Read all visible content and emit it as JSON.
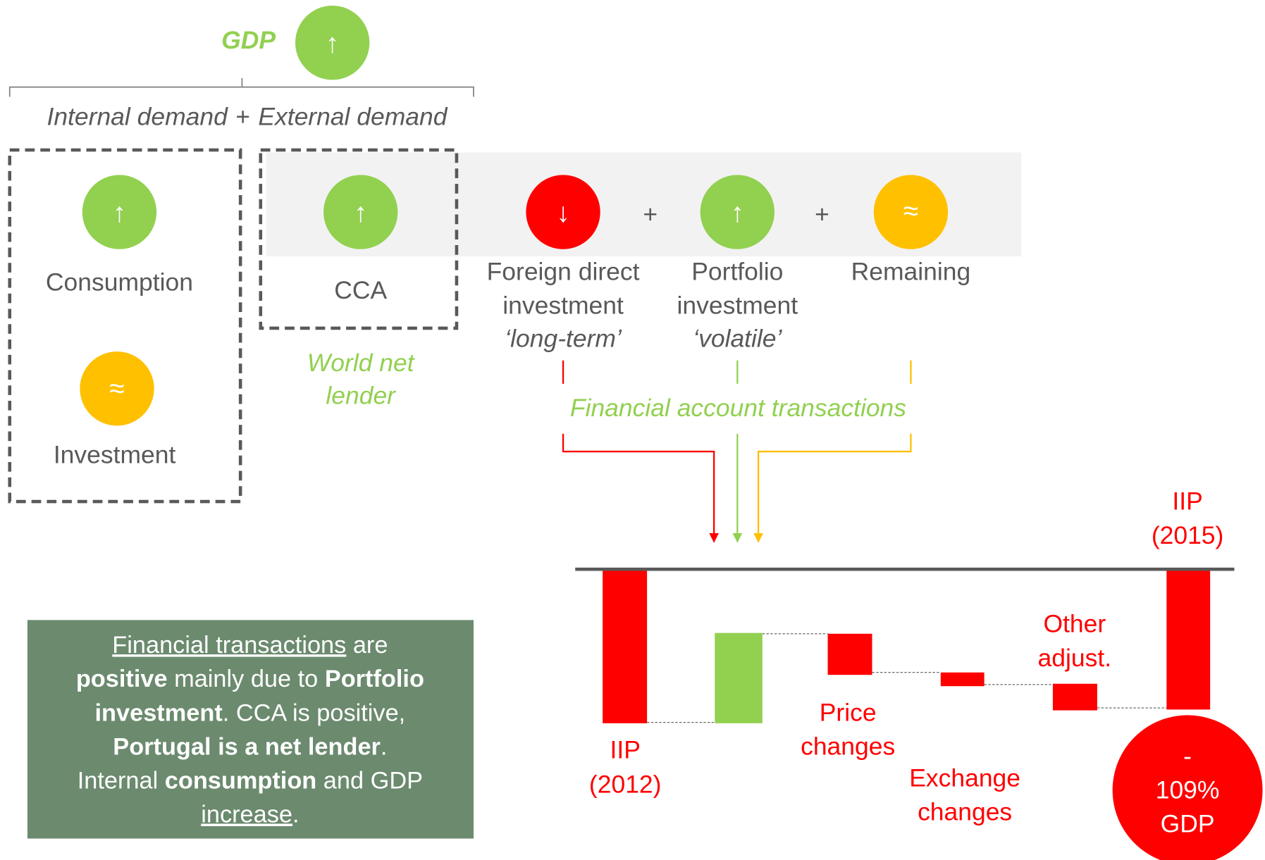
{
  "gdp": {
    "label": "GDP",
    "symbol": "↑"
  },
  "demand": {
    "internal": "Internal demand",
    "plus": "+",
    "external": "External demand"
  },
  "internal": [
    {
      "symbol": "↑",
      "label": "Consumption"
    },
    {
      "symbol": "≈",
      "label": "Investment"
    }
  ],
  "cca": {
    "symbol": "↑",
    "label": "CCA",
    "note": [
      "World net",
      "lender"
    ]
  },
  "financial": {
    "items": [
      {
        "symbol": "↓",
        "label": [
          "Foreign direct",
          "investment",
          "‘long-term’"
        ]
      },
      {
        "symbol": "↑",
        "label": [
          "Portfolio",
          "investment",
          "‘volatile’"
        ]
      },
      {
        "symbol": "≈",
        "label": [
          "Remaining"
        ]
      }
    ],
    "plus": "+",
    "caption": "Financial account transactions"
  },
  "waterfall": {
    "start": [
      "IIP",
      "(2012)"
    ],
    "price": [
      "Price",
      "changes"
    ],
    "exchange": [
      "Exchange",
      "changes"
    ],
    "other": [
      "Other",
      "adjust."
    ],
    "end": [
      "IIP",
      "(2015)"
    ],
    "result": [
      "-",
      "109%",
      "GDP"
    ]
  },
  "summary": [
    [
      {
        "text": "Financial transactions",
        "style": "underline"
      },
      {
        "text": " are"
      }
    ],
    [
      {
        "text": "positive",
        "style": "bold"
      },
      {
        "text": " mainly due to "
      },
      {
        "text": "Portfolio",
        "style": "bold"
      }
    ],
    [
      {
        "text": "investment",
        "style": "bold"
      },
      {
        "text": ". CCA is positive,"
      }
    ],
    [
      {
        "text": "Portugal is a net lender",
        "style": "bold"
      },
      {
        "text": "."
      }
    ],
    [
      {
        "text": "Internal "
      },
      {
        "text": "consumption",
        "style": "bold"
      },
      {
        "text": " and GDP"
      }
    ],
    [
      {
        "text": "increase",
        "style": "underline"
      },
      {
        "text": "."
      }
    ]
  ]
}
